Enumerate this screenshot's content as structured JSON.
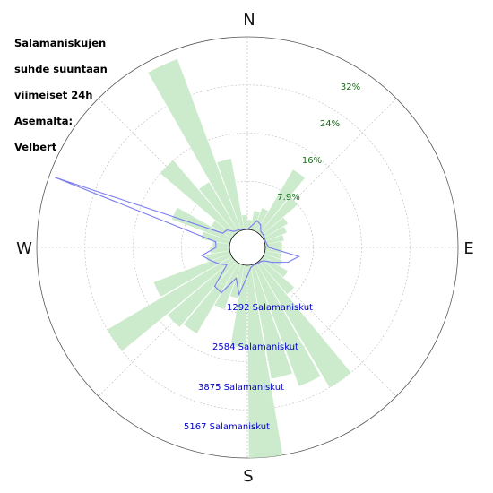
{
  "title_lines": [
    "Salamaniskujen",
    "suhde suuntaan",
    "viimeiset 24h",
    "Asemalta:",
    "Velbert"
  ],
  "compass": {
    "n": "N",
    "e": "E",
    "s": "S",
    "w": "W"
  },
  "colors": {
    "bars": "#ccebcc",
    "line": "#7b7bf0",
    "grid": "#bbbbbb",
    "pct_text": "#1a6b1a",
    "count_text": "#0000cc"
  },
  "chart_data": {
    "type": "polar-bar-line",
    "percent_ticks": [
      "7.9%",
      "16%",
      "24%",
      "32%"
    ],
    "count_ticks": [
      "1292 Salamaniskut",
      "2584 Salamaniskut",
      "3875 Salamaniskut",
      "5167 Salamaniskut"
    ],
    "percent_max": 40,
    "count_max": 6459,
    "bars_percent": [
      {
        "dir": 5,
        "value": 2
      },
      {
        "dir": 15,
        "value": 4
      },
      {
        "dir": 25,
        "value": 5
      },
      {
        "dir": 35,
        "value": 15
      },
      {
        "dir": 45,
        "value": 10
      },
      {
        "dir": 55,
        "value": 6
      },
      {
        "dir": 65,
        "value": 5
      },
      {
        "dir": 75,
        "value": 4
      },
      {
        "dir": 85,
        "value": 3.5
      },
      {
        "dir": 95,
        "value": 3.5
      },
      {
        "dir": 105,
        "value": 3.5
      },
      {
        "dir": 115,
        "value": 4
      },
      {
        "dir": 125,
        "value": 6
      },
      {
        "dir": 135,
        "value": 9
      },
      {
        "dir": 145,
        "value": 30
      },
      {
        "dir": 155,
        "value": 27
      },
      {
        "dir": 165,
        "value": 24
      },
      {
        "dir": 175,
        "value": 40
      },
      {
        "dir": 185,
        "value": 17
      },
      {
        "dir": 195,
        "value": 7
      },
      {
        "dir": 205,
        "value": 10
      },
      {
        "dir": 215,
        "value": 17
      },
      {
        "dir": 225,
        "value": 18
      },
      {
        "dir": 235,
        "value": 30
      },
      {
        "dir": 245,
        "value": 17
      },
      {
        "dir": 255,
        "value": 5
      },
      {
        "dir": 265,
        "value": 4
      },
      {
        "dir": 275,
        "value": 3.5
      },
      {
        "dir": 285,
        "value": 6
      },
      {
        "dir": 295,
        "value": 13
      },
      {
        "dir": 305,
        "value": 5
      },
      {
        "dir": 315,
        "value": 20
      },
      {
        "dir": 325,
        "value": 12
      },
      {
        "dir": 335,
        "value": 38
      },
      {
        "dir": 345,
        "value": 15
      },
      {
        "dir": 355,
        "value": 3
      }
    ],
    "line_counts": [
      {
        "dir": 0,
        "value": 0
      },
      {
        "dir": 10,
        "value": 120
      },
      {
        "dir": 20,
        "value": 350
      },
      {
        "dir": 30,
        "value": 280
      },
      {
        "dir": 40,
        "value": 100
      },
      {
        "dir": 50,
        "value": 80
      },
      {
        "dir": 60,
        "value": 60
      },
      {
        "dir": 70,
        "value": 40
      },
      {
        "dir": 80,
        "value": 60
      },
      {
        "dir": 90,
        "value": 120
      },
      {
        "dir": 100,
        "value": 1150
      },
      {
        "dir": 110,
        "value": 850
      },
      {
        "dir": 120,
        "value": 400
      },
      {
        "dir": 130,
        "value": 100
      },
      {
        "dir": 140,
        "value": 40
      },
      {
        "dir": 150,
        "value": 40
      },
      {
        "dir": 160,
        "value": 30
      },
      {
        "dir": 170,
        "value": 80
      },
      {
        "dir": 180,
        "value": 350
      },
      {
        "dir": 190,
        "value": 1000
      },
      {
        "dir": 200,
        "value": 500
      },
      {
        "dir": 210,
        "value": 1150
      },
      {
        "dir": 220,
        "value": 1100
      },
      {
        "dir": 230,
        "value": 300
      },
      {
        "dir": 240,
        "value": 500
      },
      {
        "dir": 250,
        "value": 700
      },
      {
        "dir": 260,
        "value": 950
      },
      {
        "dir": 270,
        "value": 450
      },
      {
        "dir": 280,
        "value": 480
      },
      {
        "dir": 290,
        "value": 6250
      },
      {
        "dir": 300,
        "value": 350
      },
      {
        "dir": 310,
        "value": 300
      },
      {
        "dir": 320,
        "value": 100
      },
      {
        "dir": 330,
        "value": 60
      },
      {
        "dir": 340,
        "value": 40
      },
      {
        "dir": 350,
        "value": 30
      }
    ]
  }
}
